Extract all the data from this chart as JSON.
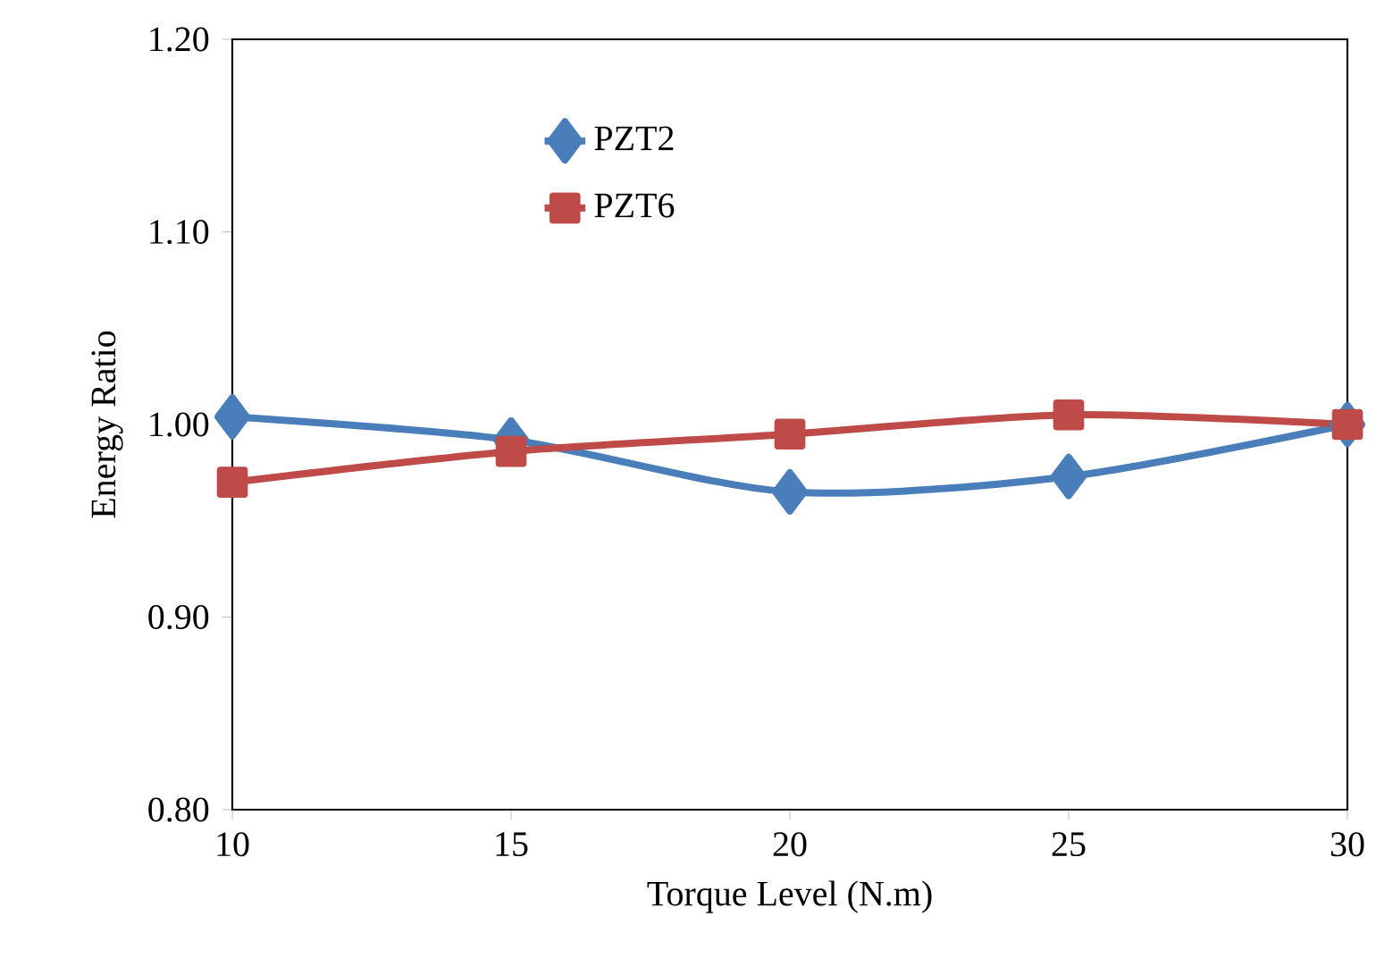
{
  "chart_data": {
    "type": "line",
    "xlabel": "Torque Level (N.m)",
    "ylabel": "Energy Ratio",
    "x": [
      10,
      15,
      20,
      25,
      30
    ],
    "series": [
      {
        "name": "PZT2",
        "color": "#4a7ebb",
        "marker": "diamond",
        "values": [
          1.004,
          0.992,
          0.965,
          0.973,
          1.0
        ]
      },
      {
        "name": "PZT6",
        "color": "#be4b48",
        "marker": "square",
        "values": [
          0.97,
          0.986,
          0.995,
          1.005,
          1.0
        ]
      }
    ],
    "xlim": [
      10,
      30
    ],
    "xticks": [
      10,
      15,
      20,
      25,
      30
    ],
    "ylim": [
      0.8,
      1.2
    ],
    "yticks": [
      {
        "value": 0.8,
        "label": "0.80"
      },
      {
        "value": 0.9,
        "label": "0.90"
      },
      {
        "value": 1.0,
        "label": "1.00"
      },
      {
        "value": 1.1,
        "label": "1.10"
      },
      {
        "value": 1.2,
        "label": "1.20"
      }
    ],
    "grid": false,
    "legend": "top",
    "line_style": "solid"
  }
}
